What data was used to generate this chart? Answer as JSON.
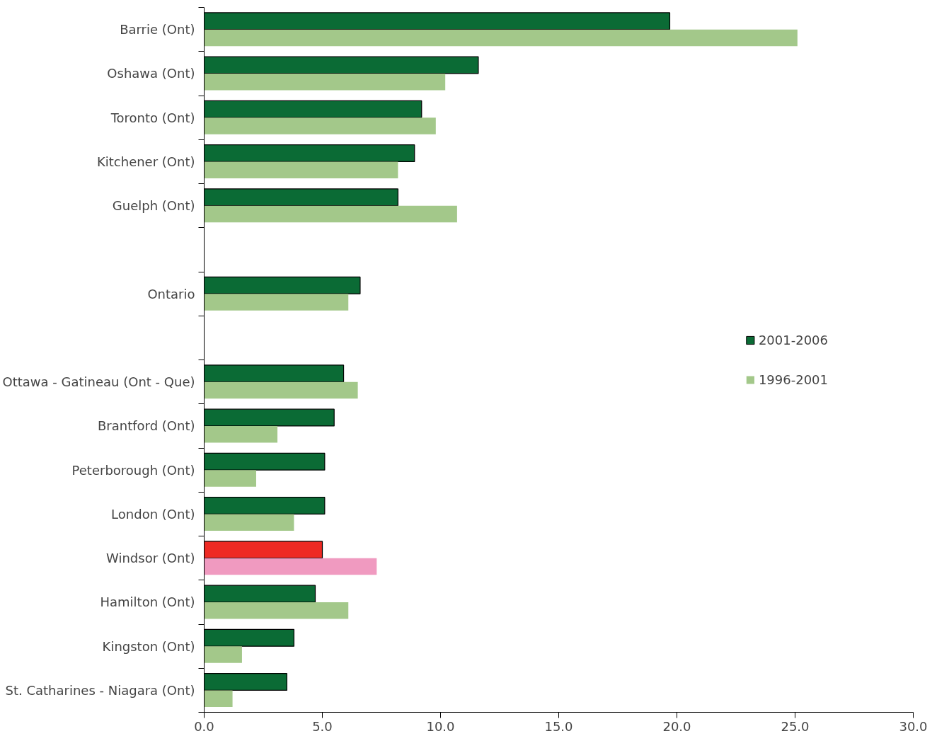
{
  "chart_data": {
    "type": "bar",
    "orientation": "horizontal",
    "categories": [
      "Barrie (Ont)",
      "Oshawa (Ont)",
      "Toronto (Ont)",
      "Kitchener (Ont)",
      "Guelph (Ont)",
      null,
      "Ontario",
      null,
      "Ottawa - Gatineau (Ont - Que)",
      "Brantford (Ont)",
      "Peterborough (Ont)",
      "London (Ont)",
      "Windsor (Ont)",
      "Hamilton (Ont)",
      "Kingston (Ont)",
      "St. Catharines - Niagara (Ont)"
    ],
    "series": [
      {
        "name": "2001-2006",
        "color": "#0b6b35",
        "colors": [
          "#0b6b35",
          "#0b6b35",
          "#0b6b35",
          "#0b6b35",
          "#0b6b35",
          "#0b6b35",
          "#0b6b35",
          "#0b6b35",
          "#0b6b35",
          "#0b6b35",
          "#0b6b35",
          "#0b6b35",
          "#ee2a24",
          "#0b6b35",
          "#0b6b35",
          "#0b6b35"
        ],
        "values": [
          19.7,
          11.6,
          9.2,
          8.9,
          8.2,
          null,
          6.6,
          null,
          5.9,
          5.5,
          5.1,
          5.1,
          5.0,
          4.7,
          3.8,
          3.5
        ]
      },
      {
        "name": "1996-2001",
        "color": "#a3c88a",
        "colors": [
          "#a3c88a",
          "#a3c88a",
          "#a3c88a",
          "#a3c88a",
          "#a3c88a",
          "#a3c88a",
          "#a3c88a",
          "#a3c88a",
          "#a3c88a",
          "#a3c88a",
          "#a3c88a",
          "#a3c88a",
          "#f09ac0",
          "#a3c88a",
          "#a3c88a",
          "#a3c88a"
        ],
        "values": [
          25.1,
          10.2,
          9.8,
          8.2,
          10.7,
          null,
          6.1,
          null,
          6.5,
          3.1,
          2.2,
          3.8,
          7.3,
          6.1,
          1.6,
          1.2
        ]
      }
    ],
    "xlim": [
      0,
      30
    ],
    "xticks": [
      {
        "value": 0,
        "label": "0.0"
      },
      {
        "value": 5,
        "label": "5.0"
      },
      {
        "value": 10,
        "label": "10.0"
      },
      {
        "value": 15,
        "label": "15.0"
      },
      {
        "value": 20,
        "label": "20.0"
      },
      {
        "value": 25,
        "label": "25.0"
      },
      {
        "value": 30,
        "label": "30.0"
      }
    ],
    "legend": "right",
    "grid": false
  }
}
